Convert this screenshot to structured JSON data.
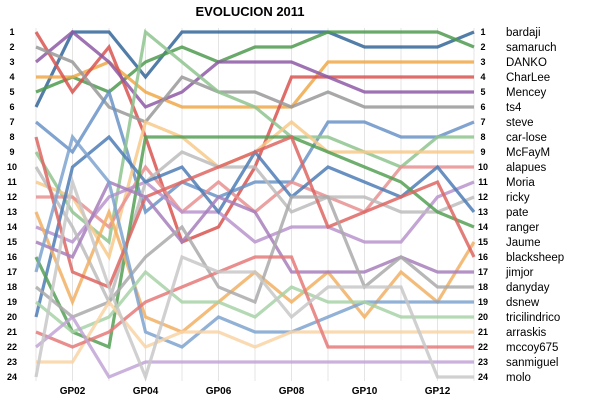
{
  "chart_data": {
    "type": "line",
    "title": "EVOLUCION 2011",
    "xlabel": "",
    "ylabel": "",
    "x_tick_labels": [
      "GP02",
      "GP04",
      "GP06",
      "GP08",
      "GP10",
      "GP12"
    ],
    "x_ticks_at": [
      2,
      4,
      6,
      8,
      10,
      12
    ],
    "x": [
      1,
      2,
      3,
      4,
      5,
      6,
      7,
      8,
      9,
      10,
      11,
      12,
      13
    ],
    "ylim": [
      24,
      1
    ],
    "y_ticks": [
      1,
      2,
      3,
      4,
      5,
      6,
      7,
      8,
      9,
      10,
      11,
      12,
      13,
      14,
      15,
      16,
      17,
      18,
      19,
      20,
      21,
      22,
      23,
      24
    ],
    "grid": "vertical",
    "legend_placement": "right",
    "series": [
      {
        "name": "bardaji",
        "color": "#336699",
        "values": [
          6,
          1,
          1,
          4,
          1,
          1,
          1,
          1,
          1,
          2,
          2,
          2,
          1
        ]
      },
      {
        "name": "samaruch",
        "color": "#4f9a4f",
        "values": [
          5,
          4,
          5,
          3,
          2,
          3,
          2,
          2,
          1,
          1,
          1,
          1,
          2
        ]
      },
      {
        "name": "DANKO",
        "color": "#f0a848",
        "values": [
          4,
          4,
          3,
          5,
          6,
          6,
          6,
          6,
          3,
          3,
          3,
          3,
          3
        ]
      },
      {
        "name": "CharLee",
        "color": "#d9534f",
        "values": [
          1,
          5,
          2,
          8,
          15,
          14,
          10,
          4,
          4,
          4,
          4,
          4,
          4
        ]
      },
      {
        "name": "Mencey",
        "color": "#8e5ba6",
        "values": [
          3,
          1,
          3,
          6,
          5,
          3,
          3,
          3,
          4,
          5,
          5,
          5,
          5
        ]
      },
      {
        "name": "ts4",
        "color": "#999999",
        "values": [
          2,
          3,
          6,
          7,
          4,
          5,
          5,
          6,
          5,
          6,
          6,
          6,
          6
        ]
      },
      {
        "name": "steve",
        "color": "#6a93c7",
        "values": [
          7,
          9,
          5,
          13,
          11,
          12,
          11,
          11,
          7,
          7,
          8,
          8,
          7
        ]
      },
      {
        "name": "car-lose",
        "color": "#8fc48f",
        "values": [
          9,
          13,
          15,
          1,
          3,
          5,
          6,
          8,
          8,
          9,
          10,
          8,
          8
        ]
      },
      {
        "name": "McFayM",
        "color": "#f7c98a",
        "values": [
          11,
          12,
          16,
          7,
          8,
          10,
          9,
          7,
          9,
          9,
          9,
          9,
          9
        ]
      },
      {
        "name": "alapues",
        "color": "#e89190",
        "values": [
          12,
          12,
          14,
          10,
          13,
          11,
          13,
          11,
          12,
          13,
          10,
          10,
          10
        ]
      },
      {
        "name": "Moria",
        "color": "#b894cc",
        "values": [
          14,
          15,
          12,
          11,
          13,
          13,
          15,
          14,
          14,
          15,
          15,
          12,
          11
        ]
      },
      {
        "name": "ricky",
        "color": "#bcbcbc",
        "values": [
          10,
          14,
          19,
          11,
          9,
          10,
          10,
          13,
          12,
          12,
          13,
          13,
          12
        ]
      },
      {
        "name": "pate",
        "color": "#4d7db5",
        "values": [
          20,
          10,
          8,
          11,
          10,
          13,
          9,
          12,
          10,
          11,
          12,
          10,
          13
        ]
      },
      {
        "name": "ranger",
        "color": "#55a055",
        "values": [
          16,
          21,
          22,
          8,
          8,
          8,
          8,
          8,
          9,
          10,
          11,
          13,
          14
        ]
      },
      {
        "name": "Jaume",
        "color": "#f2b064",
        "values": [
          13,
          19,
          13,
          20,
          21,
          19,
          17,
          19,
          17,
          20,
          17,
          19,
          15
        ]
      },
      {
        "name": "blacksheep",
        "color": "#dd6663",
        "values": [
          8,
          17,
          18,
          12,
          11,
          10,
          9,
          8,
          14,
          13,
          12,
          11,
          16
        ]
      },
      {
        "name": "jimjor",
        "color": "#a77fbb",
        "values": [
          15,
          16,
          11,
          12,
          15,
          12,
          13,
          17,
          17,
          17,
          16,
          17,
          17
        ]
      },
      {
        "name": "danyday",
        "color": "#aaaaaa",
        "values": [
          18,
          20,
          19,
          16,
          14,
          18,
          19,
          12,
          12,
          18,
          16,
          18,
          18
        ]
      },
      {
        "name": "dsnew",
        "color": "#7fa3cf",
        "values": [
          17,
          8,
          11,
          21,
          22,
          20,
          21,
          21,
          20,
          19,
          19,
          19,
          19
        ]
      },
      {
        "name": "tricilindrico",
        "color": "#a7d2a7",
        "values": [
          19,
          21,
          20,
          17,
          19,
          19,
          20,
          18,
          19,
          19,
          20,
          20,
          20
        ]
      },
      {
        "name": "arraskis",
        "color": "#f9d3a4",
        "values": [
          23,
          23,
          19,
          22,
          21,
          21,
          22,
          21,
          21,
          21,
          21,
          21,
          21
        ]
      },
      {
        "name": "mccoy675",
        "color": "#e57979",
        "values": [
          21,
          22,
          21,
          19,
          18,
          17,
          16,
          16,
          22,
          22,
          22,
          22,
          22
        ]
      },
      {
        "name": "sanmiguel",
        "color": "#c2a4d6",
        "values": [
          22,
          20,
          24,
          23,
          23,
          23,
          23,
          23,
          23,
          23,
          23,
          23,
          23
        ]
      },
      {
        "name": "molo",
        "color": "#c8c8c8",
        "values": [
          24,
          11,
          18,
          24,
          16,
          17,
          17,
          20,
          18,
          18,
          18,
          24,
          24
        ]
      }
    ]
  }
}
